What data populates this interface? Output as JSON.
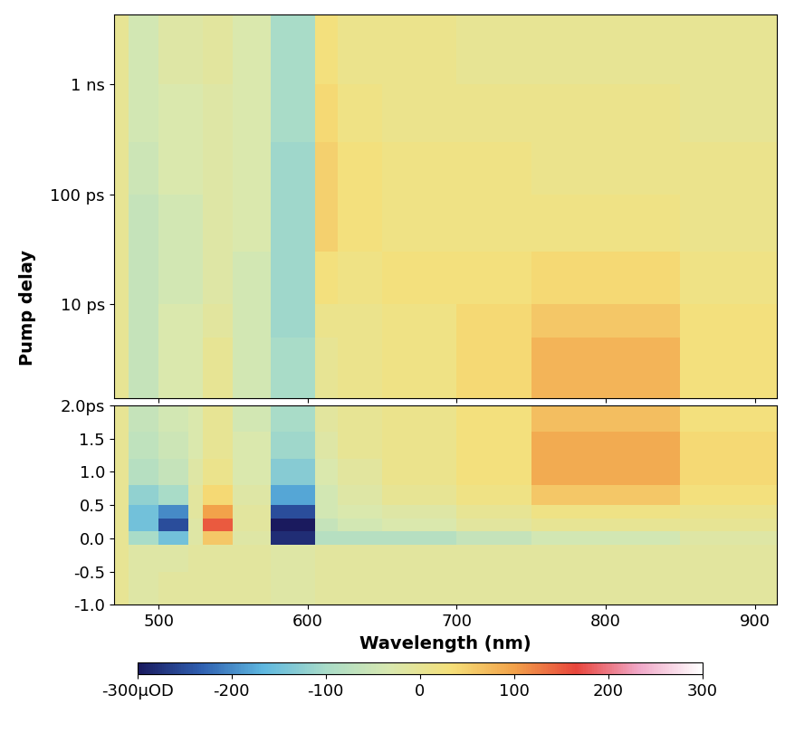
{
  "chart_data": {
    "type": "heatmap",
    "xlabel": "Wavelength (nm)",
    "ylabel": "Pump delay",
    "xlim": [
      470,
      915
    ],
    "xticks": [
      500,
      600,
      700,
      800,
      900
    ],
    "x_edges": [
      470,
      480,
      500,
      520,
      530,
      550,
      575,
      605,
      620,
      650,
      700,
      750,
      850,
      915
    ],
    "panels": [
      {
        "log": true,
        "ylim": [
          1.4,
          4300
        ],
        "yticks": [
          {
            "value": 10,
            "label": "10 ps"
          },
          {
            "value": 100,
            "label": "100 ps"
          },
          {
            "value": 1000,
            "label": "1 ns"
          }
        ],
        "y_edges": [
          1.4,
          5,
          10,
          30,
          100,
          300,
          1000,
          4300
        ],
        "cells": [
          [
            0,
            -60,
            -30,
            -30,
            0,
            -40,
            -100,
            0,
            10,
            20,
            40,
            80,
            30
          ],
          [
            0,
            -60,
            -30,
            -30,
            -10,
            -40,
            -110,
            10,
            10,
            20,
            40,
            60,
            30
          ],
          [
            0,
            -60,
            -40,
            -40,
            -20,
            -40,
            -110,
            30,
            20,
            30,
            30,
            40,
            20
          ],
          [
            0,
            -60,
            -40,
            -40,
            -20,
            -30,
            -110,
            50,
            30,
            20,
            20,
            20,
            10
          ],
          [
            0,
            -50,
            -30,
            -30,
            -20,
            -30,
            -110,
            50,
            30,
            20,
            20,
            10,
            10
          ],
          [
            0,
            -40,
            -30,
            -30,
            -20,
            -30,
            -100,
            40,
            20,
            10,
            10,
            10,
            0
          ],
          [
            0,
            -40,
            -20,
            -20,
            -10,
            -30,
            -100,
            30,
            10,
            10,
            0,
            0,
            0
          ]
        ]
      },
      {
        "log": false,
        "ylim": [
          -1.0,
          2.0
        ],
        "yticks": [
          {
            "value": -1.0,
            "label": "-1.0"
          },
          {
            "value": -0.5,
            "label": "-0.5"
          },
          {
            "value": 0.0,
            "label": "0.0"
          },
          {
            "value": 0.5,
            "label": "0.5"
          },
          {
            "value": 1.0,
            "label": "1.0"
          },
          {
            "value": 1.5,
            "label": "1.5"
          },
          {
            "value": 2.0,
            "label": "2.0ps"
          }
        ],
        "y_edges": [
          -1.0,
          -0.5,
          -0.1,
          0.1,
          0.3,
          0.5,
          0.8,
          1.2,
          1.6,
          2.0
        ],
        "cells": [
          [
            0,
            -20,
            -10,
            -10,
            -10,
            -10,
            -20,
            -10,
            -10,
            -10,
            -10,
            -10,
            -10
          ],
          [
            0,
            -20,
            -20,
            -10,
            -10,
            -10,
            -20,
            -10,
            -10,
            -10,
            -10,
            -10,
            -10
          ],
          [
            0,
            -100,
            -150,
            -20,
            60,
            -20,
            -280,
            -80,
            -80,
            -80,
            -60,
            -40,
            -20
          ],
          [
            0,
            -150,
            -250,
            -20,
            150,
            -10,
            -300,
            -60,
            -40,
            -30,
            -10,
            0,
            0
          ],
          [
            0,
            -150,
            -200,
            -10,
            100,
            -10,
            -250,
            -40,
            -30,
            -20,
            0,
            20,
            10
          ],
          [
            0,
            -120,
            -100,
            -10,
            40,
            -20,
            -180,
            -40,
            -20,
            0,
            20,
            60,
            30
          ],
          [
            0,
            -80,
            -60,
            -20,
            10,
            -30,
            -130,
            -30,
            -10,
            10,
            30,
            90,
            40
          ],
          [
            0,
            -70,
            -50,
            -30,
            0,
            -30,
            -110,
            -20,
            0,
            10,
            30,
            90,
            40
          ],
          [
            0,
            -60,
            -40,
            -30,
            0,
            -40,
            -100,
            -10,
            0,
            10,
            30,
            70,
            30
          ]
        ]
      }
    ],
    "colorbar": {
      "range": [
        -300,
        300
      ],
      "ticks": [
        {
          "value": -300,
          "label": "-300µOD"
        },
        {
          "value": -200,
          "label": "-200"
        },
        {
          "value": -100,
          "label": "-100"
        },
        0,
        100,
        200,
        300
      ]
    }
  }
}
